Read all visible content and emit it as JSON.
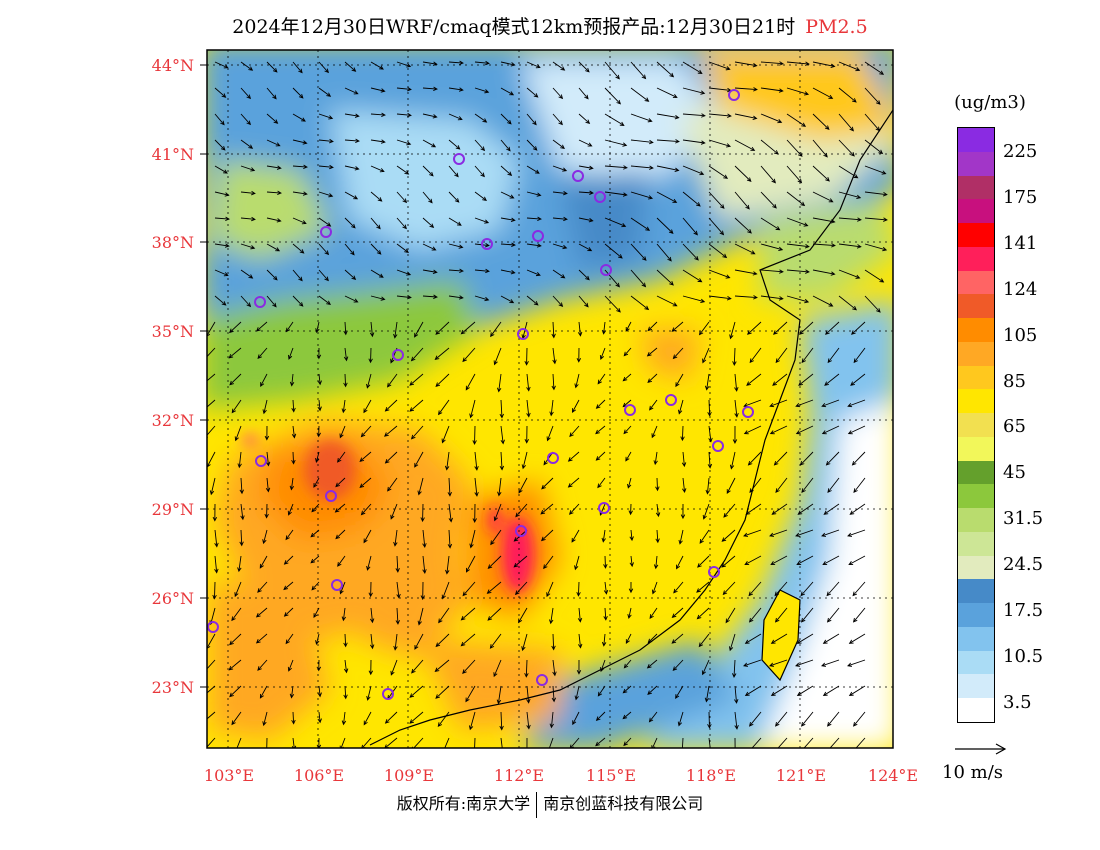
{
  "title": {
    "main": "2024年12月30日WRF/cmaq模式12km预报产品:12月30日21时",
    "product": "PM2.5"
  },
  "axes": {
    "lat_labels": [
      "44°N",
      "41°N",
      "38°N",
      "35°N",
      "32°N",
      "29°N",
      "26°N",
      "23°N"
    ],
    "lon_labels": [
      "103°E",
      "106°E",
      "109°E",
      "112°E",
      "115°E",
      "118°E",
      "121°E",
      "124°E"
    ]
  },
  "legend": {
    "unit": "(ug/m3)",
    "labels": [
      "225",
      "175",
      "141",
      "124",
      "105",
      "85",
      "65",
      "45",
      "31.5",
      "24.5",
      "17.5",
      "10.5",
      "3.5"
    ],
    "colors": [
      "#8a2be2",
      "#a236c8",
      "#b02f66",
      "#c8107e",
      "#ff0000",
      "#ff1f5a",
      "#ff6464",
      "#f05a28",
      "#ff8c00",
      "#ffa824",
      "#ffc81e",
      "#ffe600",
      "#f2e050",
      "#f2f75a",
      "#64a02c",
      "#8cc83c",
      "#b9dc6e",
      "#cde696",
      "#e2ebbe",
      "#468ac8",
      "#5aa2dc",
      "#82c3ee",
      "#aadcf5",
      "#d2ebfa",
      "#ffffff"
    ]
  },
  "wind": {
    "reference_text": "10 m/s"
  },
  "copyright": {
    "left": "版权所有:南京大学",
    "right": "南京创蓝科技有限公司"
  },
  "colors": {
    "axis_label": "#e8363a"
  }
}
